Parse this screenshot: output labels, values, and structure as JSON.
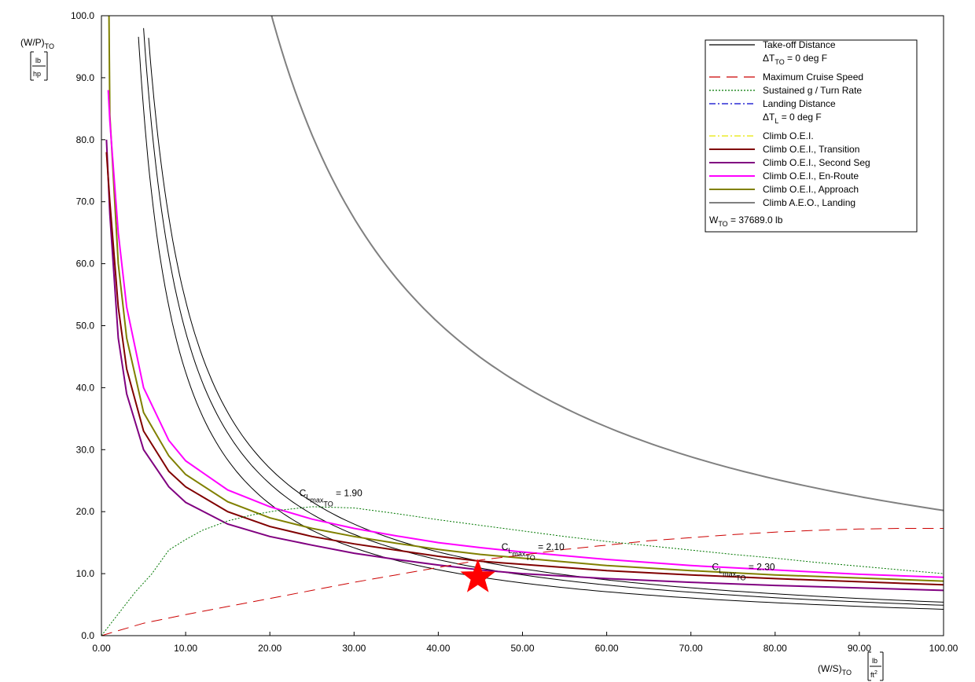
{
  "chart_data": {
    "type": "line",
    "xlabel": "(W/S)",
    "xlabel_sub": "TO",
    "xunit_num": "lb",
    "xunit_den": "ft",
    "xunit_den_sup": "2",
    "ylabel": "(W/P)",
    "ylabel_sub": "TO",
    "yunit_num": "lb",
    "yunit_den": "hp",
    "xlim": [
      0,
      100
    ],
    "ylim": [
      0,
      100
    ],
    "x_ticks": [
      "0.00",
      "10.00",
      "20.00",
      "30.00",
      "40.00",
      "50.00",
      "60.00",
      "70.00",
      "80.00",
      "90.00",
      "100.00"
    ],
    "y_ticks": [
      "0.0",
      "10.0",
      "20.0",
      "30.0",
      "40.0",
      "50.0",
      "60.0",
      "70.0",
      "80.0",
      "90.0",
      "100.0"
    ],
    "legend": {
      "position": "top-right",
      "items": [
        {
          "label": "Take-off Distance",
          "color": "#000000",
          "dash": "solid"
        },
        {
          "label": "ΔT",
          "label_sub": "TO",
          "label_rest": " = 0 deg F",
          "line": false
        },
        {
          "label": "Maximum Cruise Speed",
          "color": "#cc0000",
          "dash": "longdash"
        },
        {
          "label": "Sustained g / Turn Rate",
          "color": "#007700",
          "dash": "dotted"
        },
        {
          "label": "Landing Distance",
          "color": "#0000cc",
          "dash": "dashdot"
        },
        {
          "label": "ΔT",
          "label_sub": "L",
          "label_rest": " = 0 deg F",
          "line": false
        },
        {
          "label": "Climb O.E.I.",
          "color": "#e6e600",
          "dash": "dashdot"
        },
        {
          "label": "Climb O.E.I., Transition",
          "color": "#800000",
          "dash": "solid"
        },
        {
          "label": "Climb O.E.I., Second Seg",
          "color": "#800080",
          "dash": "solid"
        },
        {
          "label": "Climb O.E.I., En-Route",
          "color": "#ff00ff",
          "dash": "solid"
        },
        {
          "label": "Climb O.E.I., Approach",
          "color": "#808000",
          "dash": "solid"
        },
        {
          "label": "Climb A.E.O., Landing",
          "color": "#808080",
          "dash": "solid"
        }
      ],
      "wto_label": "W",
      "wto_sub": "TO",
      "wto_value": " = 37689.0 lb"
    },
    "annotations": [
      {
        "prefix": "C",
        "sub1": "L",
        "sub2": "max",
        "sub3": "TO",
        "value": " = 1.90",
        "x": 23.5,
        "y": 22.5
      },
      {
        "prefix": "C",
        "sub1": "L",
        "sub2": "max",
        "sub3": "TO",
        "value": " = 2.10",
        "x": 47.5,
        "y": 13.8
      },
      {
        "prefix": "C",
        "sub1": "L",
        "sub2": "max",
        "sub3": "TO",
        "value": " = 2.30",
        "x": 72.5,
        "y": 10.6
      }
    ],
    "series": [
      {
        "name": "Take-off Distance",
        "sub_label": "C_Lmax_TO = 1.90",
        "color": "#000000",
        "width": 1,
        "dash": "solid",
        "k": 425,
        "x_range": [
          4.4,
          100
        ]
      },
      {
        "name": "Take-off Distance",
        "sub_label": "C_Lmax_TO = 2.10",
        "color": "#000000",
        "width": 1,
        "dash": "solid",
        "k": 490,
        "x_range": [
          5.0,
          100
        ]
      },
      {
        "name": "Take-off Distance",
        "sub_label": "C_Lmax_TO = 2.30",
        "color": "#000000",
        "width": 1,
        "dash": "solid",
        "k": 540,
        "x_range": [
          5.6,
          100
        ]
      },
      {
        "name": "Climb O.E.I., Second Seg",
        "color": "#800080",
        "width": 2,
        "dash": "solid",
        "points": [
          [
            0.6,
            80
          ],
          [
            1,
            68
          ],
          [
            2,
            48
          ],
          [
            3,
            39
          ],
          [
            5,
            30
          ],
          [
            8,
            24
          ],
          [
            10,
            21.5
          ],
          [
            15,
            18
          ],
          [
            20,
            16
          ],
          [
            25,
            14.6
          ],
          [
            30,
            13.3
          ],
          [
            35,
            12.3
          ],
          [
            40,
            11.4
          ],
          [
            45,
            10.6
          ],
          [
            50,
            10
          ],
          [
            60,
            9.2
          ],
          [
            70,
            8.6
          ],
          [
            80,
            8.1
          ],
          [
            90,
            7.7
          ],
          [
            100,
            7.3
          ]
        ]
      },
      {
        "name": "Climb O.E.I., Transition",
        "color": "#800000",
        "width": 2,
        "dash": "solid",
        "points": [
          [
            0.6,
            78
          ],
          [
            1,
            70
          ],
          [
            2,
            53
          ],
          [
            3,
            43
          ],
          [
            5,
            33
          ],
          [
            8,
            26.5
          ],
          [
            10,
            24
          ],
          [
            15,
            20
          ],
          [
            20,
            17.6
          ],
          [
            25,
            16
          ],
          [
            30,
            14.8
          ],
          [
            35,
            13.8
          ],
          [
            40,
            12.8
          ],
          [
            45,
            12
          ],
          [
            50,
            11.5
          ],
          [
            60,
            10.5
          ],
          [
            70,
            9.8
          ],
          [
            80,
            9.2
          ],
          [
            90,
            8.7
          ],
          [
            100,
            8.2
          ]
        ]
      },
      {
        "name": "Climb O.E.I., Approach",
        "color": "#808000",
        "width": 2,
        "dash": "solid",
        "points": [
          [
            0.9,
            100
          ],
          [
            1,
            84
          ],
          [
            2,
            60
          ],
          [
            3,
            48
          ],
          [
            5,
            36
          ],
          [
            8,
            29
          ],
          [
            10,
            26
          ],
          [
            15,
            21.6
          ],
          [
            20,
            19
          ],
          [
            25,
            17.3
          ],
          [
            30,
            16
          ],
          [
            35,
            14.9
          ],
          [
            40,
            13.9
          ],
          [
            45,
            13.1
          ],
          [
            50,
            12.5
          ],
          [
            60,
            11.3
          ],
          [
            70,
            10.5
          ],
          [
            80,
            9.8
          ],
          [
            90,
            9.3
          ],
          [
            100,
            8.8
          ]
        ]
      },
      {
        "name": "Climb O.E.I., En-Route",
        "color": "#ff00ff",
        "width": 2,
        "dash": "solid",
        "points": [
          [
            0.8,
            88
          ],
          [
            1,
            83
          ],
          [
            2,
            65
          ],
          [
            3,
            53
          ],
          [
            5,
            40
          ],
          [
            8,
            31.5
          ],
          [
            10,
            28.2
          ],
          [
            15,
            23.5
          ],
          [
            20,
            20.8
          ],
          [
            25,
            18.8
          ],
          [
            30,
            17.3
          ],
          [
            35,
            16.1
          ],
          [
            40,
            15
          ],
          [
            45,
            14.2
          ],
          [
            50,
            13.5
          ],
          [
            60,
            12.3
          ],
          [
            70,
            11.3
          ],
          [
            80,
            10.6
          ],
          [
            90,
            9.9
          ],
          [
            100,
            9.4
          ]
        ]
      },
      {
        "name": "Climb A.E.O., Landing",
        "color": "#808080",
        "width": 2,
        "dash": "solid",
        "k": 2020,
        "x_range": [
          4.0,
          100
        ]
      },
      {
        "name": "Maximum Cruise Speed",
        "color": "#cc0000",
        "width": 1,
        "dash": "longdash",
        "points": [
          [
            0,
            0
          ],
          [
            5,
            2
          ],
          [
            10,
            3.4
          ],
          [
            15,
            4.7
          ],
          [
            20,
            6
          ],
          [
            25,
            7.3
          ],
          [
            30,
            8.6
          ],
          [
            35,
            9.8
          ],
          [
            40,
            11
          ],
          [
            45,
            12.2
          ],
          [
            50,
            13
          ],
          [
            55,
            13.9
          ],
          [
            60,
            14.6
          ],
          [
            65,
            15.3
          ],
          [
            70,
            15.8
          ],
          [
            75,
            16.3
          ],
          [
            80,
            16.7
          ],
          [
            85,
            17
          ],
          [
            90,
            17.2
          ],
          [
            95,
            17.3
          ],
          [
            100,
            17.3
          ]
        ]
      },
      {
        "name": "Sustained g / Turn Rate",
        "color": "#007700",
        "width": 1,
        "dash": "dotted",
        "points": [
          [
            0,
            0
          ],
          [
            2,
            3.5
          ],
          [
            4,
            7
          ],
          [
            6,
            10
          ],
          [
            8,
            13.8
          ],
          [
            10,
            15.5
          ],
          [
            12,
            17
          ],
          [
            15,
            18.5
          ],
          [
            18,
            19.5
          ],
          [
            21,
            20.2
          ],
          [
            25,
            20.8
          ],
          [
            30,
            20.6
          ],
          [
            35,
            19.7
          ],
          [
            40,
            18.7
          ],
          [
            45,
            17.8
          ],
          [
            50,
            16.9
          ],
          [
            55,
            16
          ],
          [
            60,
            15.2
          ],
          [
            65,
            14.5
          ],
          [
            70,
            13.8
          ],
          [
            75,
            13.1
          ],
          [
            80,
            12.5
          ],
          [
            85,
            11.8
          ],
          [
            90,
            11.2
          ],
          [
            95,
            10.6
          ],
          [
            100,
            10
          ]
        ]
      }
    ],
    "design_point": {
      "x": 44.7,
      "y": 9.4,
      "color": "#ff0000",
      "shape": "star"
    }
  }
}
